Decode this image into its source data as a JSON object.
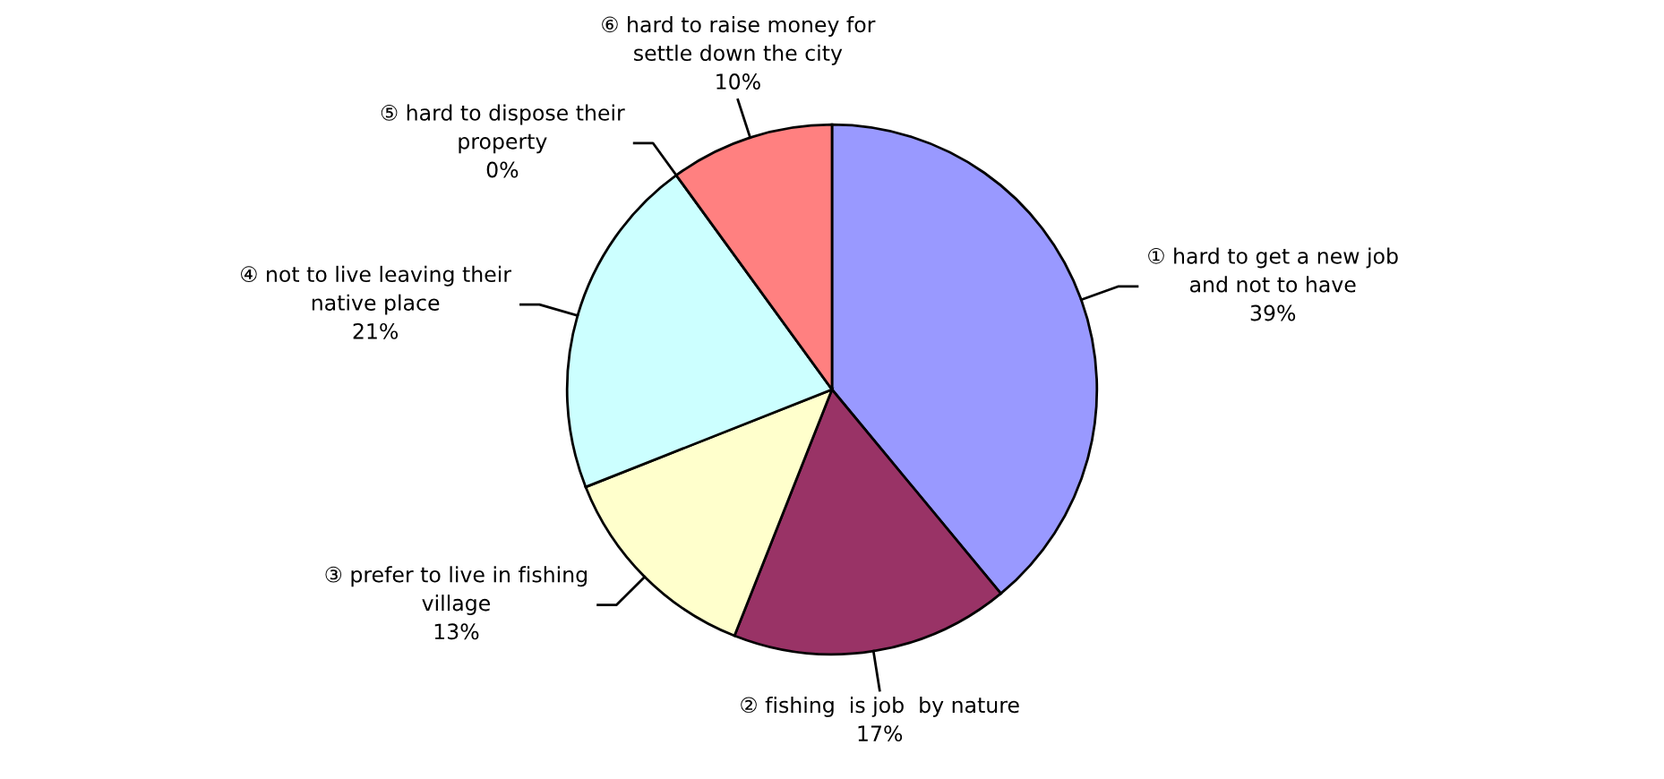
{
  "chart_data": {
    "type": "pie",
    "categories": [
      "① hard to get a new job\nand not to have",
      "② fishing  is job  by nature",
      "③ prefer to live in fishing\nvillage",
      "④ not to live leaving their\nnative place",
      "⑤ hard to dispose their\nproperty",
      "⑥ hard to raise money for\nsettle down the city"
    ],
    "values": [
      39,
      17,
      13,
      21,
      0,
      10
    ],
    "value_labels": [
      "39%",
      "17%",
      "13%",
      "21%",
      "0%",
      "10%"
    ],
    "colors": [
      "#9999ff",
      "#993366",
      "#ffffcc",
      "#ccffff",
      "#660066",
      "#ff8080"
    ]
  }
}
